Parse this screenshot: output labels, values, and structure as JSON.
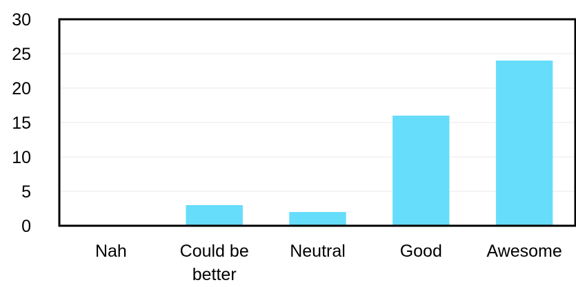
{
  "chart_data": {
    "type": "bar",
    "title": "",
    "xlabel": "",
    "ylabel": "",
    "categories": [
      [
        "Nah"
      ],
      [
        "Could be",
        "better"
      ],
      [
        "Neutral"
      ],
      [
        "Good"
      ],
      [
        "Awesome"
      ]
    ],
    "values": [
      0,
      3,
      2,
      16,
      24
    ],
    "ylim": [
      0,
      30
    ],
    "yticks": [
      0,
      5,
      10,
      15,
      20,
      25,
      30
    ],
    "grid": true,
    "legend": "none"
  },
  "colors": {
    "bar": "#66DDFB",
    "frame": "#000000",
    "gridline": "#E8E8E8",
    "baseline": "#8C8C8C"
  }
}
